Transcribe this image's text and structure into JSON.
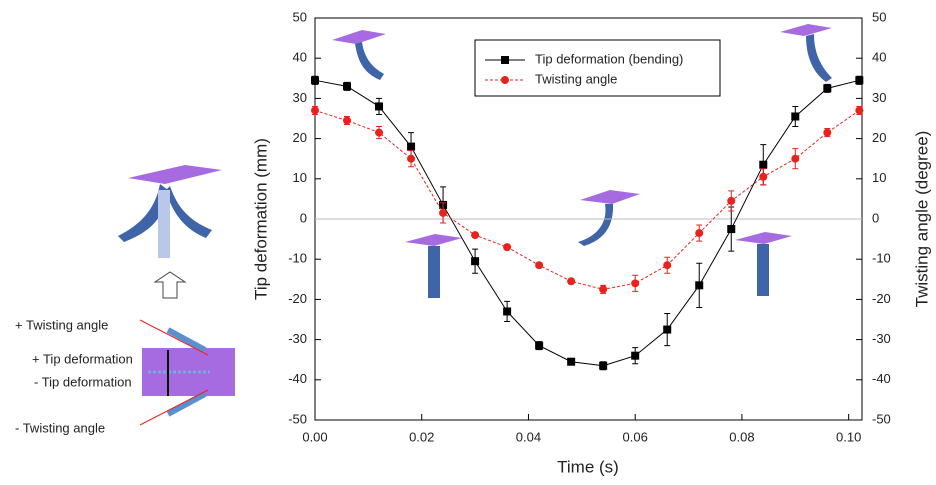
{
  "chart_data": {
    "type": "line",
    "x_label": "Time (s)",
    "y_label": "Tip deformation (mm)",
    "y2_label": "Twisting angle (degree)",
    "x": [
      0,
      0.006,
      0.012,
      0.018,
      0.024,
      0.03,
      0.036,
      0.042,
      0.048,
      0.054,
      0.06,
      0.066,
      0.072,
      0.078,
      0.084,
      0.09,
      0.096,
      0.102
    ],
    "series": [
      {
        "name": "Tip deformation (bending)",
        "color": "#000000",
        "marker": "square",
        "dashed": false,
        "values": [
          34.5,
          33,
          28,
          18,
          3.5,
          -10.5,
          -23,
          -31.5,
          -35.5,
          -36.5,
          -34,
          -27.5,
          -16.5,
          -2.5,
          13.5,
          25.5,
          32.5,
          34.5
        ],
        "errors": [
          1,
          1,
          2,
          3.5,
          4.5,
          3,
          2.5,
          1,
          0.5,
          1,
          2,
          4,
          5.5,
          5.5,
          5,
          2.5,
          1,
          1
        ]
      },
      {
        "name": "Twisting angle",
        "color": "#e8221c",
        "marker": "circle",
        "dashed": true,
        "axis": "y2",
        "values": [
          27,
          24.5,
          21.5,
          15,
          1.5,
          -4,
          -7,
          -11.5,
          -15.5,
          -17.5,
          -16,
          -11.5,
          -3.5,
          4.5,
          10.5,
          15,
          21.5,
          27
        ],
        "errors": [
          1,
          1,
          1.5,
          2,
          2.5,
          0.5,
          0.5,
          0.5,
          0.5,
          1,
          2,
          2,
          2,
          2.5,
          2,
          2.5,
          1,
          1
        ]
      }
    ],
    "xlim": [
      0,
      0.1025
    ],
    "xticks": [
      {
        "value": 0,
        "label": "0.00"
      },
      0.02,
      0.04,
      0.06,
      0.08,
      {
        "value": 0.1,
        "label": "0.10"
      }
    ],
    "ylim": [
      -50,
      50
    ],
    "yticks": [
      -50,
      -40,
      -30,
      -20,
      -10,
      0,
      10,
      20,
      30,
      40,
      50
    ],
    "y2lim": [
      -50,
      50
    ],
    "y2ticks": [
      -50,
      -40,
      -30,
      -20,
      -10,
      0,
      10,
      20,
      30,
      40,
      50
    ],
    "grid": false,
    "legend": "top-center"
  },
  "diagram": {
    "labels": [
      "+ Twisting angle",
      "+ Tip deformation",
      "- Tip deformation",
      "- Twisting angle"
    ]
  }
}
